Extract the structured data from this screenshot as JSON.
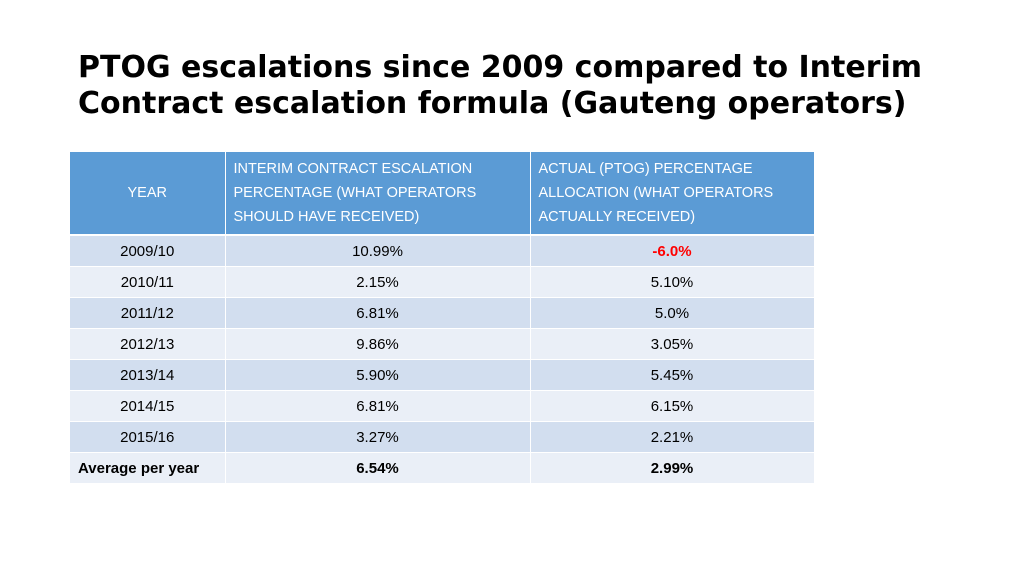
{
  "title": {
    "line1": "PTOG escalations since 2009 compared to Interim",
    "line2": "Contract escalation formula (Gauteng operators)"
  },
  "table": {
    "headers": [
      "YEAR",
      "INTERIM CONTRACT ESCALATION PERCENTAGE (WHAT OPERATORS SHOULD HAVE RECEIVED)",
      "ACTUAL (PTOG) PERCENTAGE ALLOCATION (WHAT OPERATORS ACTUALLY RECEIVED)"
    ],
    "rows": [
      [
        "2009/10",
        "10.99%",
        "-6.0%"
      ],
      [
        "2010/11",
        "2.15%",
        "5.10%"
      ],
      [
        "2011/12",
        "6.81%",
        "5.0%"
      ],
      [
        "2012/13",
        "9.86%",
        "3.05%"
      ],
      [
        "2013/14",
        "5.90%",
        "5.45%"
      ],
      [
        "2014/15",
        "6.81%",
        "6.15%"
      ],
      [
        "2015/16",
        "3.27%",
        "2.21%"
      ],
      [
        "Average per year",
        "6.54%",
        "2.99%"
      ]
    ]
  },
  "colors": {
    "header_background": "#5b9bd5",
    "band_dark": "#d2deef",
    "band_light": "#eaeff7",
    "negative_value": "#ff0000"
  }
}
